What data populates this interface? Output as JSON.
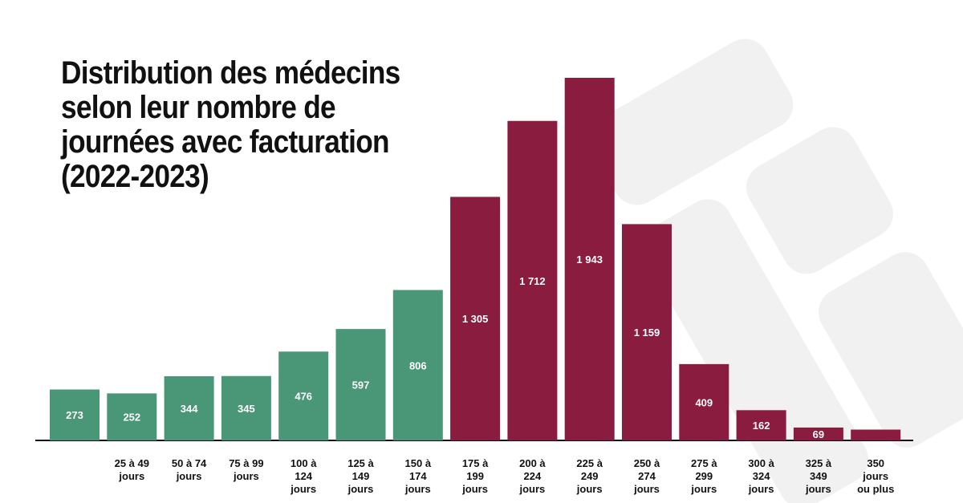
{
  "title_lines": [
    "Distribution des médecins",
    "selon leur nombre de",
    "journées avec facturation",
    "(2022-2023)"
  ],
  "colors": {
    "green": "#4a9778",
    "maroon": "#8a1c40",
    "axis": "#111111",
    "background_logo": "#f1f1f1"
  },
  "chart_data": {
    "type": "bar",
    "title": "Distribution des médecins selon leur nombre de journées avec facturation (2022-2023)",
    "xlabel": "",
    "ylabel": "",
    "ylim": [
      0,
      1943
    ],
    "grid": false,
    "legend": "none",
    "categories": [
      "",
      "25 à 49 jours",
      "50 à 74 jours",
      "75 à 99 jours",
      "100 à 124 jours",
      "125 à 149 jours",
      "150 à 174 jours",
      "175 à 199 jours",
      "200 à 224 jours",
      "225 à 249 jours",
      "250 à 274 jours",
      "275 à 299 jours",
      "300 à 324 jours",
      "325 à 349 jours",
      "350 jours ou plus"
    ],
    "category_lines": [
      [],
      [
        "25 à 49",
        "jours"
      ],
      [
        "50 à 74",
        "jours"
      ],
      [
        "75 à 99",
        "jours"
      ],
      [
        "100 à",
        "124",
        "jours"
      ],
      [
        "125 à",
        "149",
        "jours"
      ],
      [
        "150 à",
        "174",
        "jours"
      ],
      [
        "175 à",
        "199",
        "jours"
      ],
      [
        "200 à",
        "224",
        "jours"
      ],
      [
        "225 à",
        "249",
        "jours"
      ],
      [
        "250 à",
        "274",
        "jours"
      ],
      [
        "275 à",
        "299",
        "jours"
      ],
      [
        "300 à",
        "324",
        "jours"
      ],
      [
        "325 à",
        "349",
        "jours"
      ],
      [
        "350",
        "jours",
        "ou plus"
      ]
    ],
    "values": [
      273,
      252,
      344,
      345,
      476,
      597,
      806,
      1305,
      1712,
      1943,
      1159,
      409,
      162,
      69,
      58
    ],
    "value_labels": [
      "273",
      "252",
      "344",
      "345",
      "476",
      "597",
      "806",
      "1 305",
      "1 712",
      "1 943",
      "1 159",
      "409",
      "162",
      "69",
      ""
    ],
    "bar_color_groups": [
      "green",
      "green",
      "green",
      "green",
      "green",
      "green",
      "green",
      "maroon",
      "maroon",
      "maroon",
      "maroon",
      "maroon",
      "maroon",
      "maroon",
      "maroon"
    ]
  }
}
